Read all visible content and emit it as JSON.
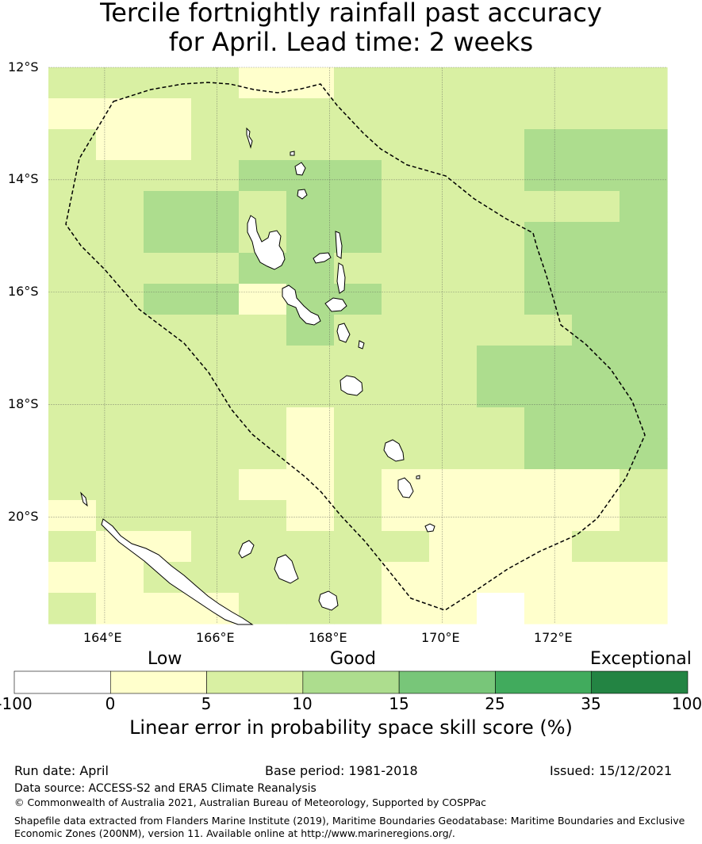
{
  "title": {
    "line1": "Tercile fortnightly rainfall past accuracy",
    "line2": "for April. Lead time: 2 weeks"
  },
  "map": {
    "lat_labels": [
      "12°S",
      "14°S",
      "16°S",
      "18°S",
      "20°S"
    ],
    "lon_labels": [
      "164°E",
      "166°E",
      "168°E",
      "170°E",
      "172°E"
    ],
    "lon_range": [
      163.0,
      174.0
    ],
    "lat_range": [
      -21.9,
      -12.0
    ],
    "grid_lines": true,
    "cell_size_deg": 0.84,
    "grid_cols": 13,
    "grid_rows": 18,
    "skill_classes": "0=below 0 (white), 1=0-5, 2=5-10, 3=10-15, 4=15-25",
    "cells": [
      "2222112222222",
      "1112222222222",
      "2112222222333",
      "2222333222333",
      "2233233222223",
      "2233233222333",
      "2222332222333",
      "2233133222333",
      "2222232222233",
      "2222222223333",
      "2222222223333",
      "2222212222333",
      "2222212222333",
      "2222112111112",
      "1222212111112",
      "2112222211122",
      "1122222111111",
      "2111222110111"
    ],
    "colors": {
      "class0": "#ffffff",
      "class1": "#ffffcc",
      "class2": "#d9f0a3",
      "class3": "#addd8e",
      "class4": "#78c679",
      "class5": "#41ab5d",
      "class6": "#238443"
    }
  },
  "colorbar": {
    "words": [
      "Low",
      "Good",
      "Exceptional"
    ],
    "ticks": [
      "-100",
      "0",
      "5",
      "10",
      "15",
      "25",
      "35",
      "100"
    ],
    "colors": [
      "#ffffff",
      "#ffffcc",
      "#d9f0a3",
      "#addd8e",
      "#78c679",
      "#41ab5d",
      "#238443"
    ],
    "caption": "Linear error in probability space skill score (%)"
  },
  "footer": {
    "run_date": "Run date: April",
    "base_period": "Base period: 1981-2018",
    "issued": "Issued: 15/12/2021",
    "data_source": "Data source: ACCESS-S2 and ERA5 Climate Reanalysis",
    "copyright": "© Commonwealth of Australia 2021, Australian Bureau of Meteorology, Supported by COSPPac",
    "shapefile_line1": "Shapefile data extracted from Flanders Marine Institute (2019), Maritime Boundaries Geodatabase: Maritime Boundaries and Exclusive",
    "shapefile_line2": "Economic Zones (200NM), version 11. Available online at http://www.marineregions.org/."
  }
}
